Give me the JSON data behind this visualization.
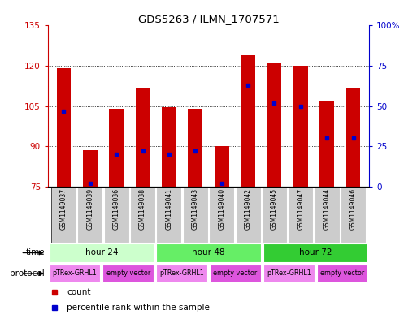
{
  "title": "GDS5263 / ILMN_1707571",
  "samples": [
    "GSM1149037",
    "GSM1149039",
    "GSM1149036",
    "GSM1149038",
    "GSM1149041",
    "GSM1149043",
    "GSM1149040",
    "GSM1149042",
    "GSM1149045",
    "GSM1149047",
    "GSM1149044",
    "GSM1149046"
  ],
  "count_values": [
    119,
    88.5,
    104,
    112,
    104.5,
    104,
    90,
    124,
    121,
    120,
    107,
    112
  ],
  "percentile_values": [
    47,
    2,
    20,
    22,
    20,
    22,
    2,
    63,
    52,
    50,
    30,
    30
  ],
  "ylim_left": [
    75,
    135
  ],
  "ylim_right": [
    0,
    100
  ],
  "yticks_left": [
    75,
    90,
    105,
    120,
    135
  ],
  "yticks_right": [
    0,
    25,
    50,
    75,
    100
  ],
  "ytick_labels_right": [
    "0",
    "25",
    "50",
    "75",
    "100%"
  ],
  "time_groups": [
    {
      "label": "hour 24",
      "start": 0,
      "end": 4,
      "color": "#ccffcc"
    },
    {
      "label": "hour 48",
      "start": 4,
      "end": 8,
      "color": "#66ee66"
    },
    {
      "label": "hour 72",
      "start": 8,
      "end": 12,
      "color": "#33cc33"
    }
  ],
  "protocol_groups": [
    {
      "label": "pTRex-GRHL1",
      "start": 0,
      "end": 2,
      "color": "#ee88ee"
    },
    {
      "label": "empty vector",
      "start": 2,
      "end": 4,
      "color": "#dd55dd"
    },
    {
      "label": "pTRex-GRHL1",
      "start": 4,
      "end": 6,
      "color": "#ee88ee"
    },
    {
      "label": "empty vector",
      "start": 6,
      "end": 8,
      "color": "#dd55dd"
    },
    {
      "label": "pTRex-GRHL1",
      "start": 8,
      "end": 10,
      "color": "#ee88ee"
    },
    {
      "label": "empty vector",
      "start": 10,
      "end": 12,
      "color": "#dd55dd"
    }
  ],
  "bar_color": "#cc0000",
  "dot_color": "#0000cc",
  "bar_width": 0.55,
  "grid_color": "#000000",
  "axis_color_left": "#cc0000",
  "axis_color_right": "#0000cc",
  "sample_box_color": "#cccccc",
  "time_label": "time",
  "protocol_label": "protocol",
  "legend_count": "count",
  "legend_percentile": "percentile rank within the sample",
  "fig_width": 5.13,
  "fig_height": 3.93,
  "dpi": 100
}
